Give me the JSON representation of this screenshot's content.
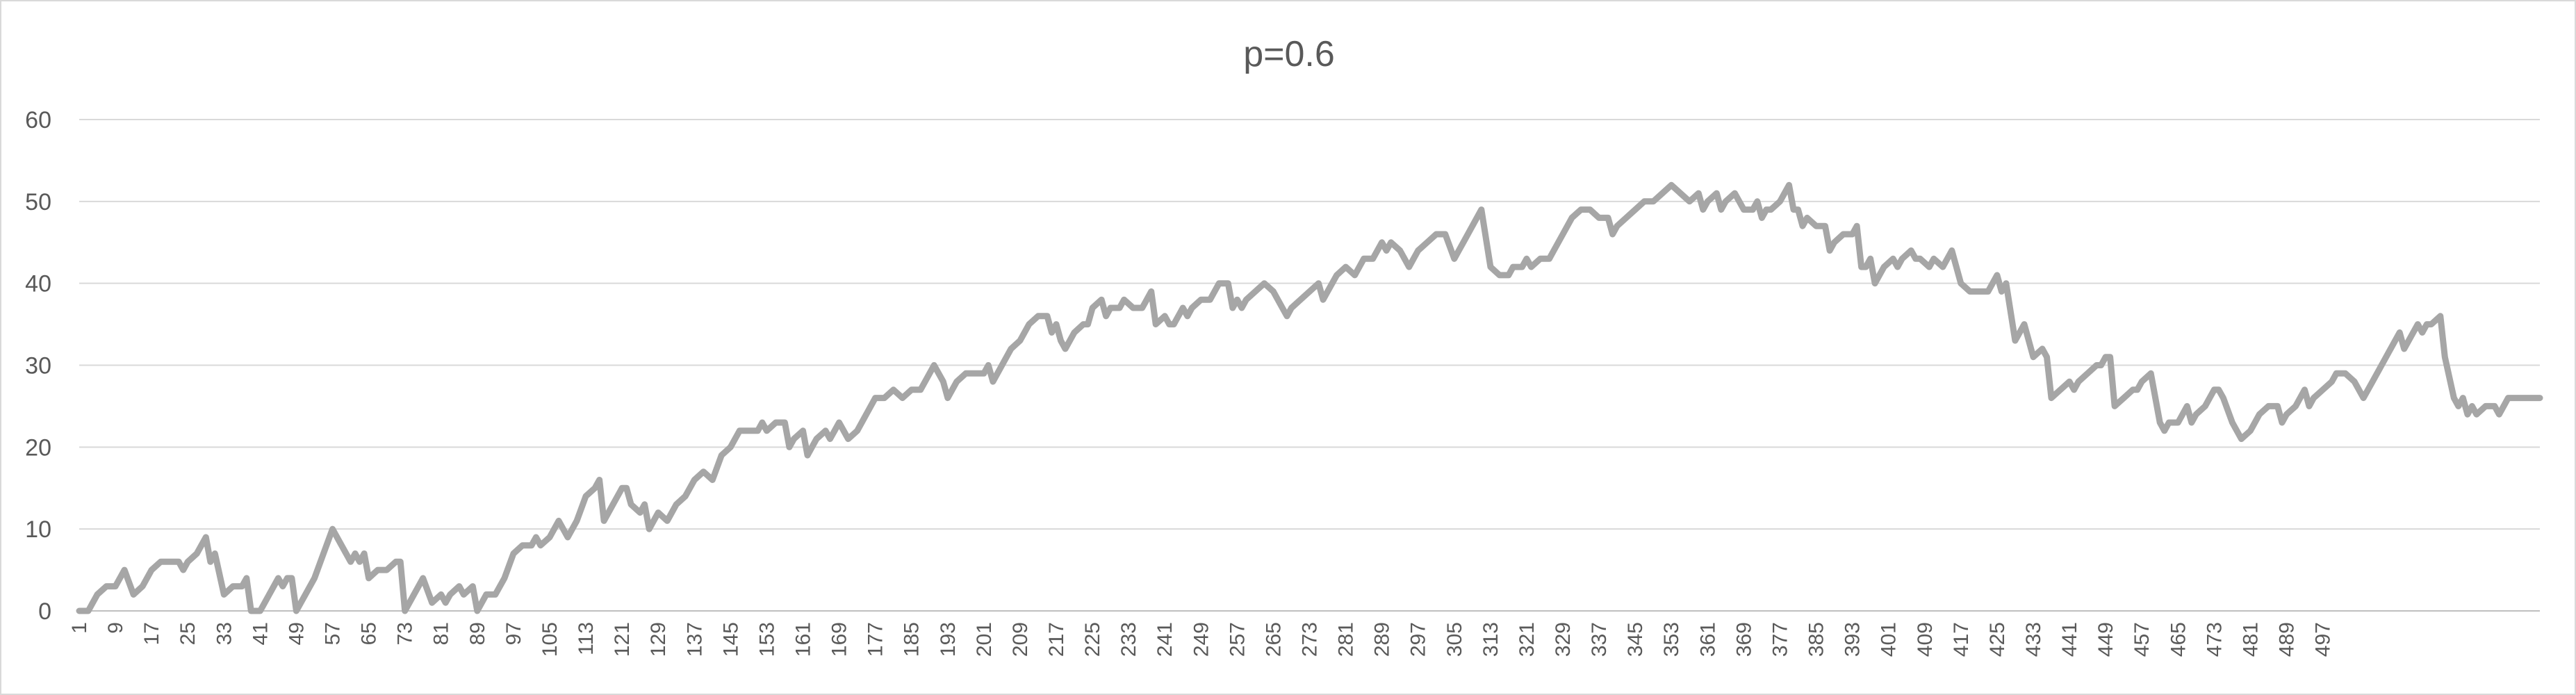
{
  "chart_data": {
    "type": "line",
    "title": "p=0.6",
    "xlabel": "",
    "ylabel": "",
    "ylim": [
      0,
      60
    ],
    "yticks": [
      0,
      10,
      20,
      30,
      40,
      50,
      60
    ],
    "grid": true,
    "legend": "none",
    "series_color": "#a6a6a6",
    "x_start": 1,
    "x_end": 500,
    "x_tick_step": 8,
    "series": [
      {
        "name": "",
        "points": [
          [
            1,
            0
          ],
          [
            3,
            0
          ],
          [
            5,
            2
          ],
          [
            7,
            3
          ],
          [
            9,
            3
          ],
          [
            11,
            5
          ],
          [
            13,
            2
          ],
          [
            15,
            3
          ],
          [
            17,
            5
          ],
          [
            19,
            6
          ],
          [
            21,
            6
          ],
          [
            23,
            6
          ],
          [
            24,
            5
          ],
          [
            25,
            6
          ],
          [
            27,
            7
          ],
          [
            29,
            9
          ],
          [
            30,
            6
          ],
          [
            31,
            7
          ],
          [
            33,
            2
          ],
          [
            35,
            3
          ],
          [
            37,
            3
          ],
          [
            38,
            4
          ],
          [
            39,
            0
          ],
          [
            41,
            0
          ],
          [
            43,
            2
          ],
          [
            45,
            4
          ],
          [
            46,
            3
          ],
          [
            47,
            4
          ],
          [
            48,
            4
          ],
          [
            49,
            0
          ],
          [
            51,
            2
          ],
          [
            53,
            4
          ],
          [
            55,
            7
          ],
          [
            57,
            10
          ],
          [
            59,
            8
          ],
          [
            61,
            6
          ],
          [
            62,
            7
          ],
          [
            63,
            6
          ],
          [
            64,
            7
          ],
          [
            65,
            4
          ],
          [
            67,
            5
          ],
          [
            69,
            5
          ],
          [
            71,
            6
          ],
          [
            72,
            6
          ],
          [
            73,
            0
          ],
          [
            75,
            2
          ],
          [
            77,
            4
          ],
          [
            79,
            1
          ],
          [
            81,
            2
          ],
          [
            82,
            1
          ],
          [
            83,
            2
          ],
          [
            85,
            3
          ],
          [
            86,
            2
          ],
          [
            88,
            3
          ],
          [
            89,
            0
          ],
          [
            91,
            2
          ],
          [
            93,
            2
          ],
          [
            95,
            4
          ],
          [
            97,
            7
          ],
          [
            99,
            8
          ],
          [
            101,
            8
          ],
          [
            102,
            9
          ],
          [
            103,
            8
          ],
          [
            105,
            9
          ],
          [
            107,
            11
          ],
          [
            109,
            9
          ],
          [
            111,
            11
          ],
          [
            113,
            14
          ],
          [
            115,
            15
          ],
          [
            116,
            16
          ],
          [
            117,
            11
          ],
          [
            119,
            13
          ],
          [
            121,
            15
          ],
          [
            122,
            15
          ],
          [
            123,
            13
          ],
          [
            125,
            12
          ],
          [
            126,
            13
          ],
          [
            127,
            10
          ],
          [
            129,
            12
          ],
          [
            131,
            11
          ],
          [
            133,
            13
          ],
          [
            135,
            14
          ],
          [
            137,
            16
          ],
          [
            139,
            17
          ],
          [
            141,
            16
          ],
          [
            143,
            19
          ],
          [
            145,
            20
          ],
          [
            147,
            22
          ],
          [
            149,
            22
          ],
          [
            151,
            22
          ],
          [
            152,
            23
          ],
          [
            153,
            22
          ],
          [
            155,
            23
          ],
          [
            157,
            23
          ],
          [
            158,
            20
          ],
          [
            159,
            21
          ],
          [
            161,
            22
          ],
          [
            162,
            19
          ],
          [
            164,
            21
          ],
          [
            166,
            22
          ],
          [
            167,
            21
          ],
          [
            168,
            22
          ],
          [
            169,
            23
          ],
          [
            171,
            21
          ],
          [
            173,
            22
          ],
          [
            175,
            24
          ],
          [
            177,
            26
          ],
          [
            179,
            26
          ],
          [
            181,
            27
          ],
          [
            183,
            26
          ],
          [
            185,
            27
          ],
          [
            187,
            27
          ],
          [
            189,
            29
          ],
          [
            190,
            30
          ],
          [
            192,
            28
          ],
          [
            193,
            26
          ],
          [
            195,
            28
          ],
          [
            197,
            29
          ],
          [
            199,
            29
          ],
          [
            201,
            29
          ],
          [
            202,
            30
          ],
          [
            203,
            28
          ],
          [
            205,
            30
          ],
          [
            207,
            32
          ],
          [
            209,
            33
          ],
          [
            211,
            35
          ],
          [
            213,
            36
          ],
          [
            215,
            36
          ],
          [
            216,
            34
          ],
          [
            217,
            35
          ],
          [
            218,
            33
          ],
          [
            219,
            32
          ],
          [
            221,
            34
          ],
          [
            223,
            35
          ],
          [
            224,
            35
          ],
          [
            225,
            37
          ],
          [
            227,
            38
          ],
          [
            228,
            36
          ],
          [
            229,
            37
          ],
          [
            231,
            37
          ],
          [
            232,
            38
          ],
          [
            234,
            37
          ],
          [
            236,
            37
          ],
          [
            238,
            39
          ],
          [
            239,
            35
          ],
          [
            241,
            36
          ],
          [
            242,
            35
          ],
          [
            243,
            35
          ],
          [
            245,
            37
          ],
          [
            246,
            36
          ],
          [
            247,
            37
          ],
          [
            249,
            38
          ],
          [
            251,
            38
          ],
          [
            253,
            40
          ],
          [
            255,
            40
          ],
          [
            256,
            37
          ],
          [
            257,
            38
          ],
          [
            258,
            37
          ],
          [
            259,
            38
          ],
          [
            261,
            39
          ],
          [
            263,
            40
          ],
          [
            265,
            39
          ],
          [
            267,
            37
          ],
          [
            268,
            36
          ],
          [
            269,
            37
          ],
          [
            271,
            38
          ],
          [
            273,
            39
          ],
          [
            275,
            40
          ],
          [
            276,
            38
          ],
          [
            277,
            39
          ],
          [
            279,
            41
          ],
          [
            281,
            42
          ],
          [
            283,
            41
          ],
          [
            285,
            43
          ],
          [
            287,
            43
          ],
          [
            289,
            45
          ],
          [
            290,
            44
          ],
          [
            291,
            45
          ],
          [
            293,
            44
          ],
          [
            295,
            42
          ],
          [
            297,
            44
          ],
          [
            299,
            45
          ],
          [
            301,
            46
          ],
          [
            303,
            46
          ],
          [
            305,
            43
          ],
          [
            306,
            44
          ],
          [
            307,
            45
          ],
          [
            309,
            47
          ],
          [
            311,
            49
          ],
          [
            313,
            42
          ],
          [
            315,
            41
          ],
          [
            317,
            41
          ],
          [
            318,
            42
          ],
          [
            320,
            42
          ],
          [
            321,
            43
          ],
          [
            322,
            42
          ],
          [
            324,
            43
          ],
          [
            326,
            43
          ],
          [
            327,
            44
          ],
          [
            329,
            46
          ],
          [
            331,
            48
          ],
          [
            333,
            49
          ],
          [
            335,
            49
          ],
          [
            337,
            48
          ],
          [
            339,
            48
          ],
          [
            340,
            46
          ],
          [
            341,
            47
          ],
          [
            343,
            48
          ],
          [
            345,
            49
          ],
          [
            347,
            50
          ],
          [
            349,
            50
          ],
          [
            351,
            51
          ],
          [
            353,
            52
          ],
          [
            355,
            51
          ],
          [
            357,
            50
          ],
          [
            359,
            51
          ],
          [
            360,
            49
          ],
          [
            361,
            50
          ],
          [
            363,
            51
          ],
          [
            364,
            49
          ],
          [
            365,
            50
          ],
          [
            367,
            51
          ],
          [
            369,
            49
          ],
          [
            371,
            49
          ],
          [
            372,
            50
          ],
          [
            373,
            48
          ],
          [
            374,
            49
          ],
          [
            375,
            49
          ],
          [
            377,
            50
          ],
          [
            379,
            52
          ],
          [
            380,
            49
          ],
          [
            381,
            49
          ],
          [
            382,
            47
          ],
          [
            383,
            48
          ],
          [
            385,
            47
          ],
          [
            387,
            47
          ],
          [
            388,
            44
          ],
          [
            389,
            45
          ],
          [
            391,
            46
          ],
          [
            393,
            46
          ],
          [
            394,
            47
          ],
          [
            395,
            42
          ],
          [
            396,
            42
          ],
          [
            397,
            43
          ],
          [
            398,
            40
          ],
          [
            400,
            42
          ],
          [
            402,
            43
          ],
          [
            403,
            42
          ],
          [
            404,
            43
          ],
          [
            406,
            44
          ],
          [
            407,
            43
          ],
          [
            408,
            43
          ],
          [
            410,
            42
          ],
          [
            411,
            43
          ],
          [
            413,
            42
          ],
          [
            415,
            44
          ],
          [
            417,
            40
          ],
          [
            419,
            39
          ],
          [
            421,
            39
          ],
          [
            423,
            39
          ],
          [
            424,
            40
          ],
          [
            425,
            41
          ],
          [
            426,
            39
          ],
          [
            427,
            40
          ],
          [
            429,
            33
          ],
          [
            431,
            35
          ],
          [
            433,
            31
          ],
          [
            435,
            32
          ],
          [
            436,
            31
          ],
          [
            437,
            26
          ],
          [
            439,
            27
          ],
          [
            441,
            28
          ],
          [
            442,
            27
          ],
          [
            443,
            28
          ],
          [
            445,
            29
          ],
          [
            447,
            30
          ],
          [
            448,
            30
          ],
          [
            449,
            31
          ],
          [
            450,
            31
          ],
          [
            451,
            25
          ],
          [
            453,
            26
          ],
          [
            455,
            27
          ],
          [
            456,
            27
          ],
          [
            457,
            28
          ],
          [
            459,
            29
          ],
          [
            461,
            23
          ],
          [
            462,
            22
          ],
          [
            463,
            23
          ],
          [
            465,
            23
          ],
          [
            467,
            25
          ],
          [
            468,
            23
          ],
          [
            469,
            24
          ],
          [
            471,
            25
          ],
          [
            473,
            27
          ],
          [
            474,
            27
          ],
          [
            475,
            26
          ],
          [
            477,
            23
          ],
          [
            479,
            21
          ],
          [
            481,
            22
          ],
          [
            483,
            24
          ],
          [
            485,
            25
          ],
          [
            487,
            25
          ],
          [
            488,
            23
          ],
          [
            489,
            24
          ],
          [
            491,
            25
          ],
          [
            493,
            27
          ],
          [
            494,
            25
          ],
          [
            495,
            26
          ],
          [
            497,
            27
          ],
          [
            499,
            28
          ],
          [
            500,
            29
          ],
          [
            502,
            29
          ],
          [
            504,
            28
          ],
          [
            506,
            26
          ],
          [
            508,
            28
          ],
          [
            510,
            30
          ],
          [
            512,
            32
          ],
          [
            514,
            34
          ],
          [
            515,
            32
          ],
          [
            517,
            34
          ],
          [
            518,
            35
          ],
          [
            519,
            34
          ],
          [
            520,
            35
          ],
          [
            521,
            35
          ],
          [
            523,
            36
          ],
          [
            524,
            31
          ],
          [
            526,
            26
          ],
          [
            527,
            25
          ],
          [
            528,
            26
          ],
          [
            529,
            24
          ],
          [
            530,
            25
          ],
          [
            531,
            24
          ],
          [
            533,
            25
          ],
          [
            535,
            25
          ],
          [
            536,
            24
          ],
          [
            537,
            25
          ],
          [
            538,
            26
          ],
          [
            540,
            26
          ],
          [
            542,
            26
          ],
          [
            545,
            26
          ]
        ]
      }
    ]
  }
}
